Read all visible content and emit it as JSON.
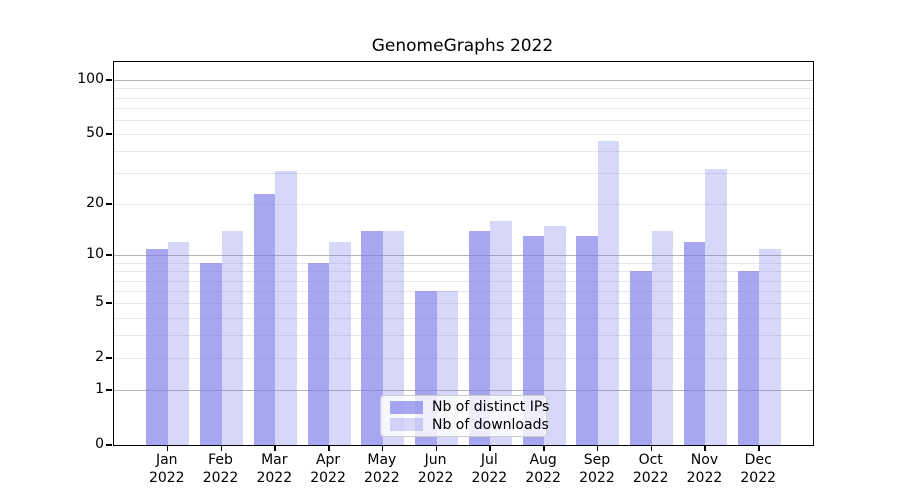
{
  "title": "GenomeGraphs 2022",
  "chart_data": {
    "type": "bar",
    "title": "GenomeGraphs 2022",
    "categories": [
      "Jan",
      "Feb",
      "Mar",
      "Apr",
      "May",
      "Jun",
      "Jul",
      "Aug",
      "Sep",
      "Oct",
      "Nov",
      "Dec"
    ],
    "x_year_label": "2022",
    "series": [
      {
        "name": "Nb of distinct IPs",
        "alpha": 0.68,
        "values": [
          11,
          9,
          23,
          9,
          14,
          6,
          14,
          13,
          13,
          8,
          12,
          8
        ]
      },
      {
        "name": "Nb of downloads",
        "alpha": 0.3,
        "values": [
          12,
          14,
          31,
          12,
          14,
          6,
          16,
          15,
          46,
          14,
          32,
          11
        ]
      }
    ],
    "bar_base_color": "#7c7ceb",
    "y_scale": "log1p",
    "y_axis": {
      "tick_values": [
        0,
        1,
        2,
        5,
        10,
        20,
        50,
        100
      ],
      "gridlines_decade": [
        1,
        10,
        100
      ],
      "gridlines_minor": [
        2,
        3,
        4,
        5,
        6,
        7,
        8,
        9,
        20,
        30,
        40,
        50,
        60,
        70,
        80,
        90
      ],
      "max_value": 126
    },
    "grid": true,
    "legend_position": "lower center",
    "colors": {
      "grid_minor": "#e8e8e8",
      "grid_decade": "#b3b3b3",
      "axis": "#000000",
      "text": "#000000"
    }
  }
}
